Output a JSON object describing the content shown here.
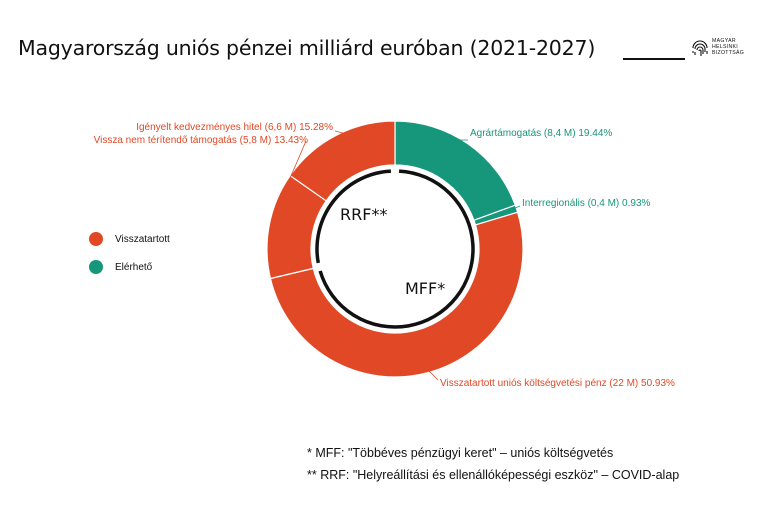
{
  "title": "Magyarország uniós pénzei milliárd euróban (2021-2027)",
  "logo": {
    "lines": [
      "MAGYAR",
      "HELSINKI",
      "BIZOTTSÁG"
    ]
  },
  "colors": {
    "withheld": "#E04826",
    "available": "#16967A",
    "ring": "#111111"
  },
  "legend": [
    {
      "label": "Visszatartott",
      "color": "#E04826"
    },
    {
      "label": "Elérhető",
      "color": "#16967A"
    }
  ],
  "inner_labels": {
    "rrf": "RRF**",
    "mff": "MFF*"
  },
  "footnotes": [
    "* MFF: \"Többéves pénzügyi keret\" – uniós költségvetés",
    "** RRF: \"Helyreállítási és ellenállóképességi eszköz\" – COVID-alap"
  ],
  "chart_data": {
    "type": "pie",
    "unit": "milliárd euró",
    "series": [
      {
        "label": "Agrártámogatás (8,4 M) 19.44%",
        "value": 8.4,
        "percent": 19.44,
        "status": "Elérhető",
        "fund": "MFF"
      },
      {
        "label": "Interregionális (0,4 M) 0.93%",
        "value": 0.4,
        "percent": 0.93,
        "status": "Elérhető",
        "fund": "MFF"
      },
      {
        "label": "Visszatartott uniós költségvetési pénz (22 M) 50.93%",
        "value": 22,
        "percent": 50.93,
        "status": "Visszatartott",
        "fund": "MFF"
      },
      {
        "label": "Vissza nem térítendő támogatás (5,8 M) 13.43%",
        "value": 5.8,
        "percent": 13.43,
        "status": "Visszatartott",
        "fund": "RRF"
      },
      {
        "label": "Igényelt kedvezményes hitel (6,6 M) 15.28%",
        "value": 6.6,
        "percent": 15.28,
        "status": "Visszatartott",
        "fund": "RRF"
      }
    ]
  }
}
